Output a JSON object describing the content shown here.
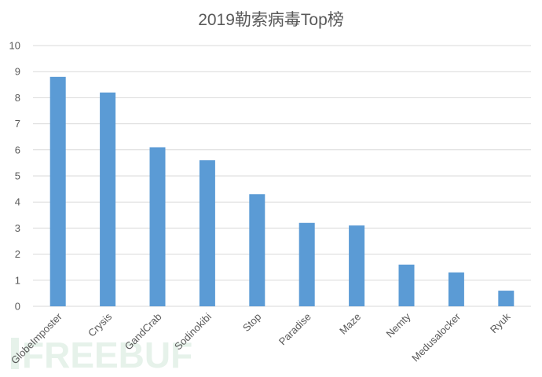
{
  "chart_data": {
    "type": "bar",
    "title": "2019勒索病毒Top榜",
    "categories": [
      "GlobeImposter",
      "Crysis",
      "GandCrab",
      "Sodinokibi",
      "Stop",
      "Paradise",
      "Maze",
      "Nemty",
      "Medusalocker",
      "Ryuk"
    ],
    "values": [
      8.8,
      8.2,
      6.1,
      5.6,
      4.3,
      3.2,
      3.1,
      1.6,
      1.3,
      0.6
    ],
    "ylim": [
      0,
      10
    ],
    "yticks": [
      0,
      1,
      2,
      3,
      4,
      5,
      6,
      7,
      8,
      9,
      10
    ],
    "grid": true,
    "legend": "none",
    "bar_color": "#5b9bd5"
  },
  "watermark": "FREEBUF"
}
